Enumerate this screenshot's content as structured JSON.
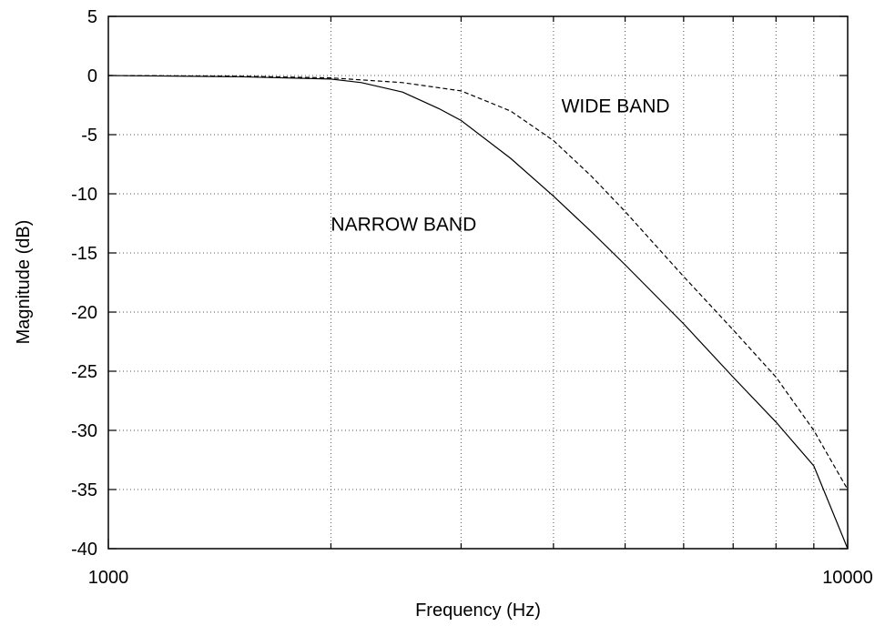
{
  "chart_data": {
    "type": "line",
    "title": "",
    "xlabel": "Frequency (Hz)",
    "ylabel": "Magnitude (dB)",
    "xscale": "log",
    "xlim": [
      1000,
      10000
    ],
    "ylim": [
      -40,
      5
    ],
    "x_tick_labels": [
      {
        "value": 1000,
        "label": "1000"
      },
      {
        "value": 10000,
        "label": "10000"
      }
    ],
    "x_minor_gridlines": [
      2000,
      3000,
      4000,
      5000,
      6000,
      7000,
      8000,
      9000
    ],
    "y_ticks": [
      5,
      0,
      -5,
      -10,
      -15,
      -20,
      -25,
      -30,
      -35,
      -40
    ],
    "y_tick_labels": [
      "5",
      "0",
      "-5",
      "-10",
      "-15",
      "-20",
      "-25",
      "-30",
      "-35",
      "-40"
    ],
    "grid": true,
    "series": [
      {
        "name": "NARROW BAND",
        "style": "solid",
        "color": "#000000",
        "x": [
          1000,
          1500,
          2000,
          2200,
          2500,
          2800,
          3000,
          3500,
          4000,
          4500,
          5000,
          6000,
          7000,
          8000,
          9000,
          10000
        ],
        "y": [
          0,
          -0.1,
          -0.3,
          -0.6,
          -1.4,
          -2.8,
          -3.8,
          -7.0,
          -10.2,
          -13.2,
          -16.0,
          -21.0,
          -25.5,
          -29.3,
          -33.0,
          -40.0
        ]
      },
      {
        "name": "WIDE BAND",
        "style": "dashed",
        "color": "#000000",
        "x": [
          1000,
          1500,
          2000,
          2500,
          3000,
          3500,
          4000,
          4500,
          5000,
          6000,
          7000,
          8000,
          9000,
          10000
        ],
        "y": [
          0,
          -0.05,
          -0.2,
          -0.6,
          -1.3,
          -3.0,
          -5.5,
          -8.5,
          -11.5,
          -17.0,
          -21.5,
          -25.5,
          -30.0,
          -35.0
        ]
      }
    ],
    "annotations": [
      {
        "text": "WIDE BAND",
        "x": 4100,
        "y": -2.5
      },
      {
        "text": "NARROW BAND",
        "x": 2000,
        "y": -12.5
      }
    ]
  }
}
